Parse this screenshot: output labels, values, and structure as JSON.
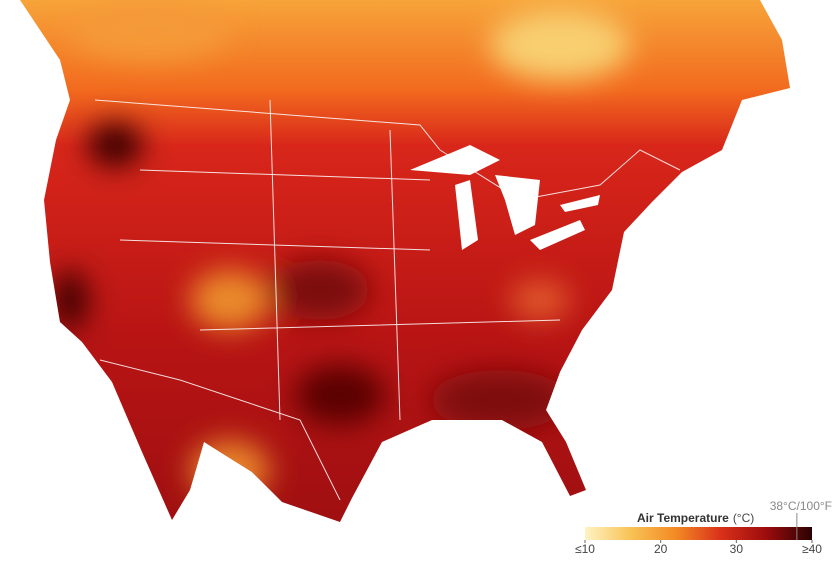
{
  "legend": {
    "title": "Air Temperature",
    "unit": "(°C)",
    "range": [
      10,
      40
    ],
    "ticks": [
      {
        "value": 10,
        "label": "≤10"
      },
      20,
      30,
      {
        "value": 40,
        "label": "≥40"
      }
    ],
    "marker": {
      "value": 38,
      "label": "38°C/100°F"
    },
    "colors": [
      "#fff3c4",
      "#f8c356",
      "#f38a24",
      "#d9301a",
      "#9c0c0c",
      "#2a0202"
    ]
  }
}
